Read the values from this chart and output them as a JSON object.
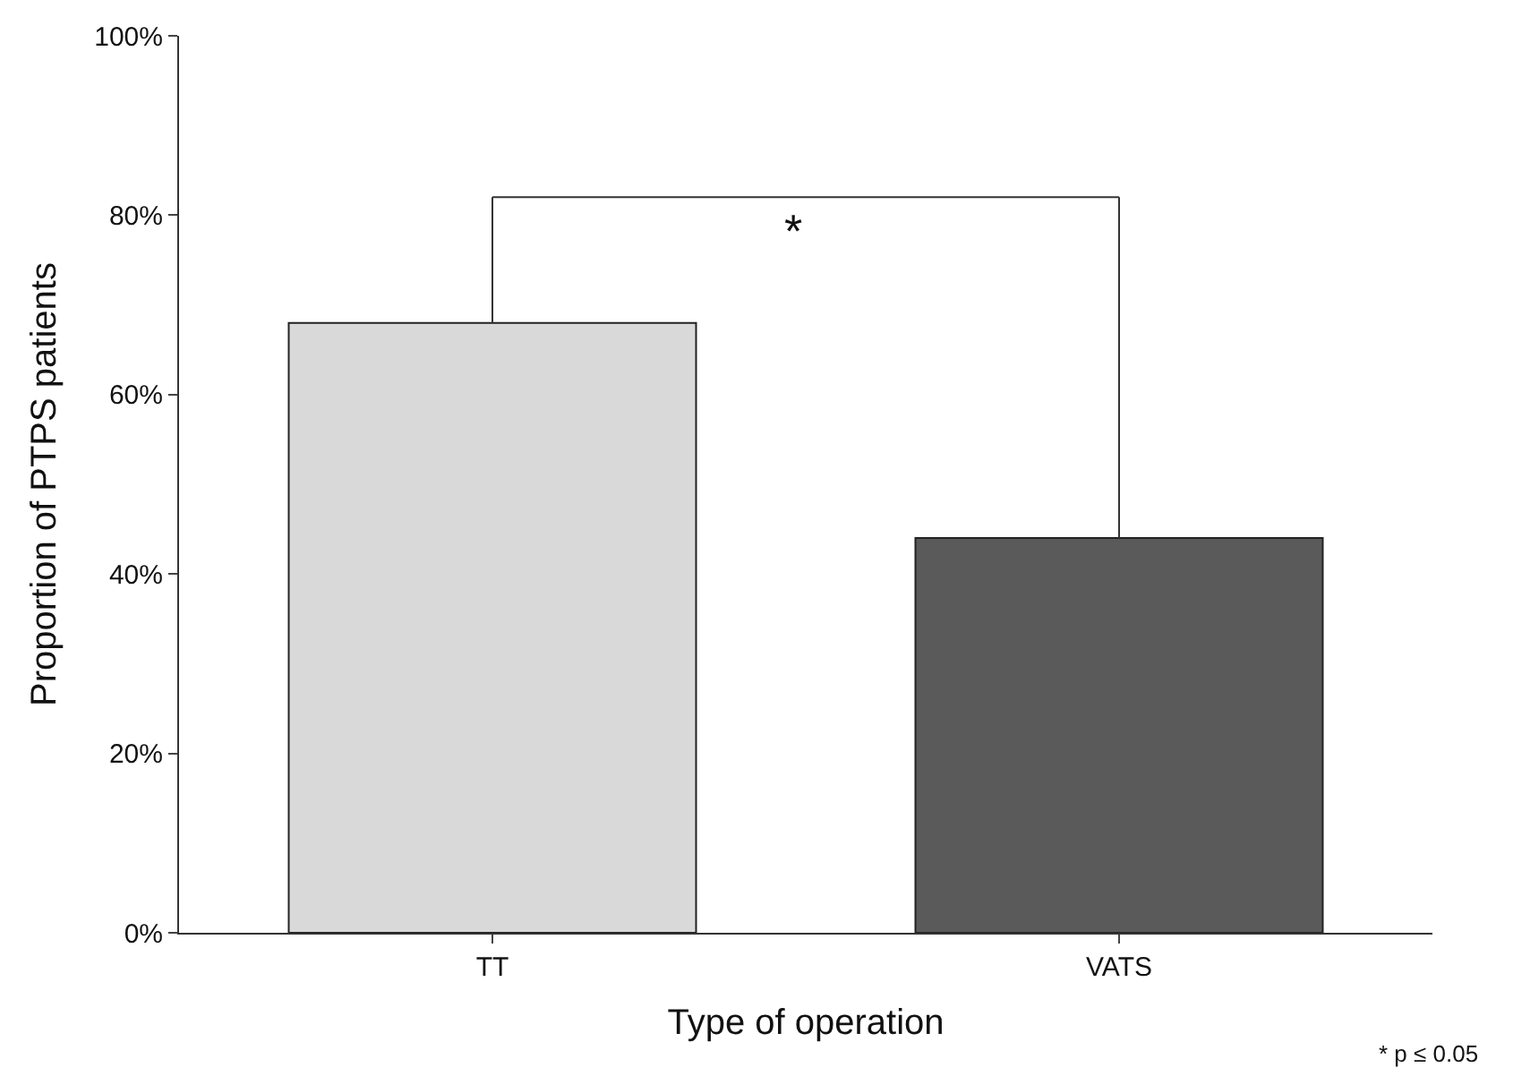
{
  "chart_data": {
    "type": "bar",
    "xlabel": "Type of operation",
    "ylabel": "Proportion of PTPS patients",
    "categories": [
      "TT",
      "VATS"
    ],
    "values": [
      68,
      44
    ],
    "colors": [
      "#d9d9d9",
      "#5a5a5a"
    ],
    "ylim": [
      0,
      100
    ],
    "yticks": [
      {
        "value": 0,
        "label": "0%"
      },
      {
        "value": 20,
        "label": "20%"
      },
      {
        "value": 40,
        "label": "40%"
      },
      {
        "value": 60,
        "label": "60%"
      },
      {
        "value": 80,
        "label": "80%"
      },
      {
        "value": 100,
        "label": "100%"
      }
    ],
    "annotations": [
      "*",
      "* p ≤ 0.05"
    ]
  }
}
